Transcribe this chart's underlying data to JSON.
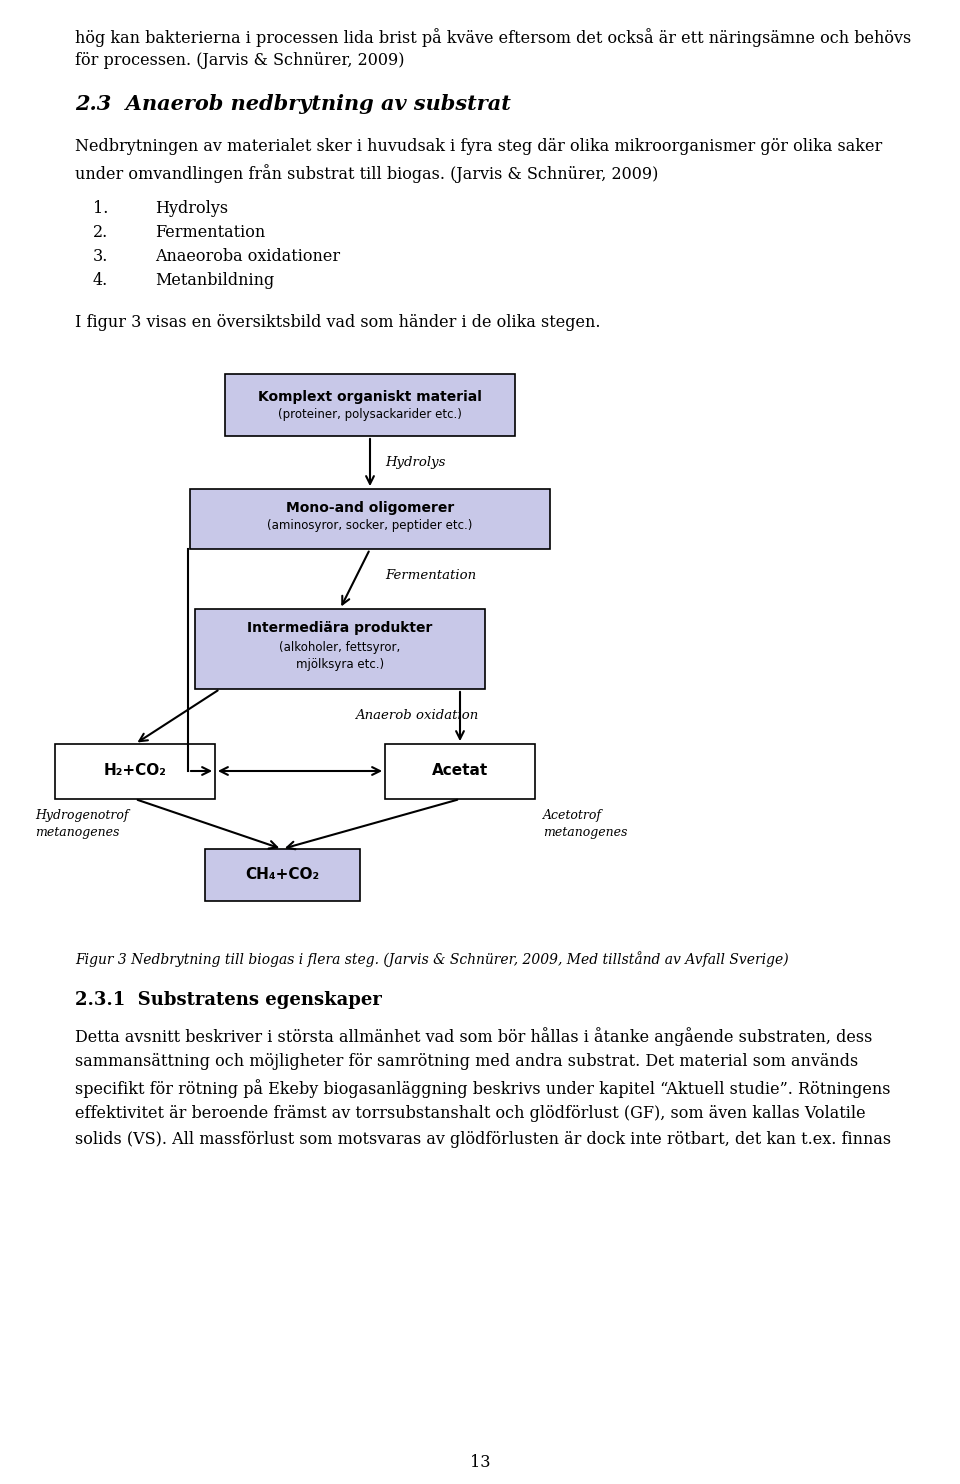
{
  "bg_color": "#ffffff",
  "page_width": 9.6,
  "page_height": 14.84,
  "dpi": 100,
  "text_color": "#000000",
  "box_color_fill": "#c8c8e8",
  "box_color_light": "#d8d8f0",
  "box_border": "#000000",
  "para_fontsize": 11.5,
  "top_text": [
    "hög kan bakterierna i processen lida brist på kväve eftersom det också är ett näringsämne och behövs",
    "för processen. (Jarvis & Schnürer, 2009)"
  ],
  "section_title": "2.3  Anaerob nedbrytning av substrat",
  "para1": [
    "Nedbrytningen av materialet sker i huvudsak i fyra steg där olika mikroorganismer gör olika saker",
    "under omvandlingen från substrat till biogas. (Jarvis & Schnürer, 2009)"
  ],
  "list_items": [
    {
      "num": "1.",
      "text": "Hydrolys"
    },
    {
      "num": "2.",
      "text": "Fermentation"
    },
    {
      "num": "3.",
      "text": "Anaeoroba oxidationer"
    },
    {
      "num": "4.",
      "text": "Metanbildning"
    }
  ],
  "figur_intro": "I figur 3 visas en översiktsbild vad som händer i de olika stegen.",
  "caption": "Figur 3 Nedbrytning till biogas i flera steg. (Jarvis & Schnürer, 2009, Med tillstånd av Avfall Sverige)",
  "section2_title": "2.3.1  Substratens egenskaper",
  "bottom_para": [
    "Detta avsnitt beskriver i största allmänhet vad som bör hållas i åtanke angående substraten, dess",
    "sammansättning och möjligheter för samrötning med andra substrat. Det material som används",
    "specifikt för rötning på Ekeby biogasanläggning beskrivs under kapitel “Aktuell studie”. Rötningens",
    "effektivitet är beroende främst av torrsubstanshalt och glödförlust (GF), som även kallas Volatile",
    "solids (VS). All massförlust som motsvaras av glödförlusten är dock inte rötbart, det kan t.ex. finnas"
  ],
  "page_number": "13"
}
